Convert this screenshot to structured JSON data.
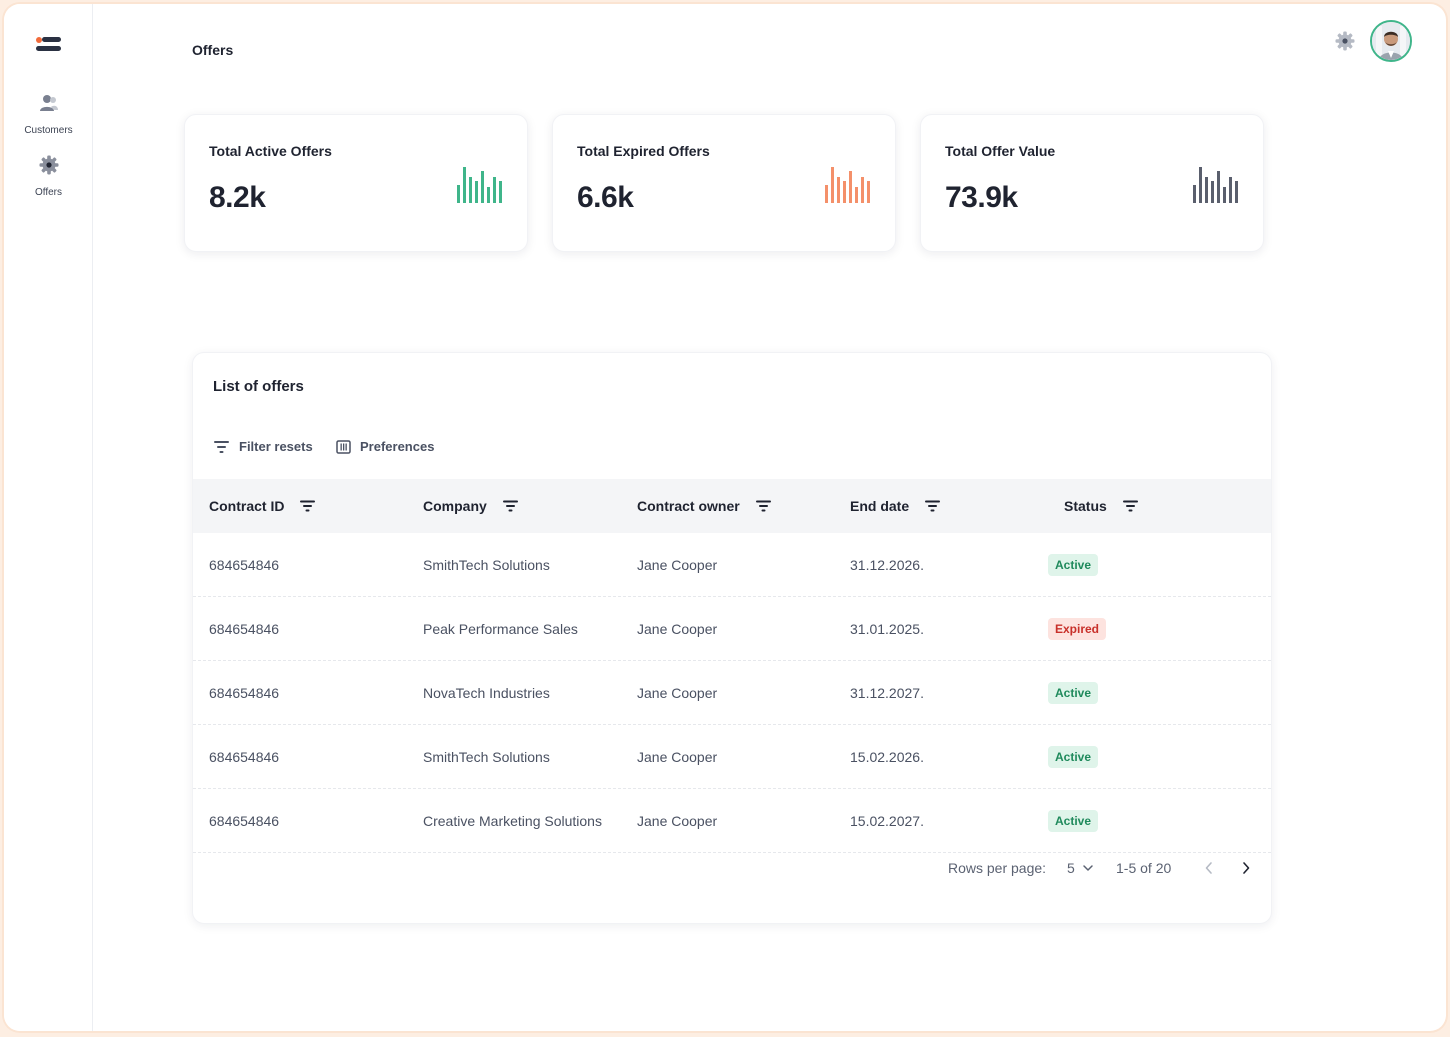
{
  "header": {
    "title": "Offers"
  },
  "sidebar": {
    "items": [
      {
        "label": "Customers",
        "icon": "users-icon"
      },
      {
        "label": "Offers",
        "icon": "gear-icon"
      }
    ]
  },
  "stats": [
    {
      "title": "Total Active Offers",
      "value": "8.2k",
      "color": "#3fb58a"
    },
    {
      "title": "Total Expired Offers",
      "value": "6.6k",
      "color": "#f4906a"
    },
    {
      "title": "Total Offer Value",
      "value": "73.9k",
      "color": "#5a5f6d"
    }
  ],
  "table": {
    "title": "List of offers",
    "tools": {
      "filter_resets": "Filter resets",
      "preferences": "Preferences"
    },
    "columns": [
      "Contract ID",
      "Company",
      "Contract owner",
      "End date",
      "Status"
    ],
    "rows": [
      {
        "id": "684654846",
        "company": "SmithTech Solutions",
        "owner": "Jane Cooper",
        "end": "31.12.2026.",
        "status": "Active"
      },
      {
        "id": "684654846",
        "company": "Peak Performance Sales",
        "owner": "Jane Cooper",
        "end": "31.01.2025.",
        "status": "Expired"
      },
      {
        "id": "684654846",
        "company": "NovaTech Industries",
        "owner": "Jane Cooper",
        "end": "31.12.2027.",
        "status": "Active"
      },
      {
        "id": "684654846",
        "company": "SmithTech Solutions",
        "owner": "Jane Cooper",
        "end": "15.02.2026.",
        "status": "Active"
      },
      {
        "id": "684654846",
        "company": "Creative Marketing Solutions",
        "owner": "Jane Cooper",
        "end": "15.02.2027.",
        "status": "Active"
      }
    ],
    "pagination": {
      "rows_label": "Rows per page:",
      "rows_value": "5",
      "range": "1-5 of 20"
    }
  }
}
